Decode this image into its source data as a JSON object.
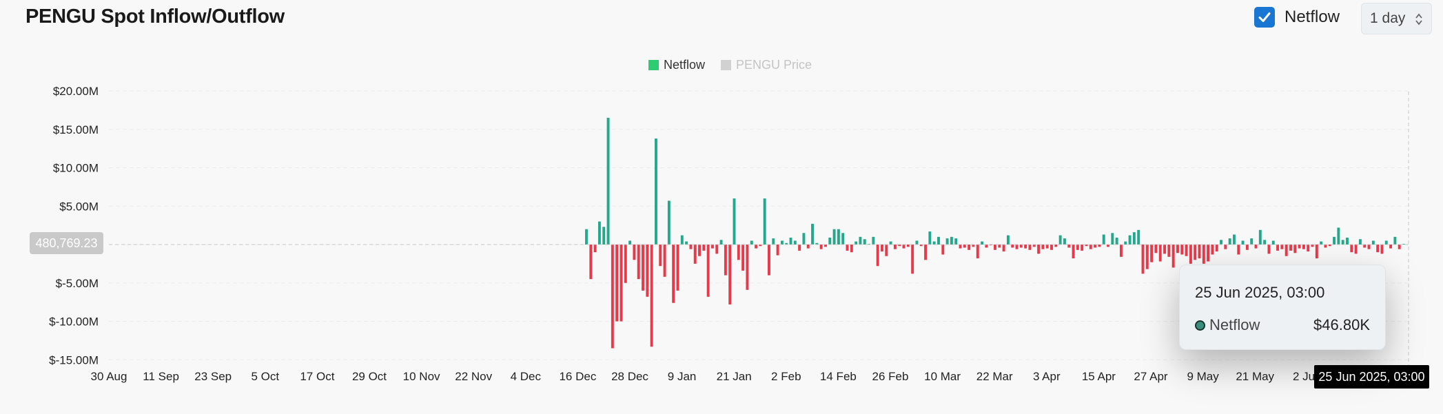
{
  "header": {
    "title": "PENGU Spot Inflow/Outflow",
    "netflow_toggle_label": "Netflow",
    "netflow_checked": true,
    "interval_value": "1 day"
  },
  "colors": {
    "positive": "#22a88a",
    "negative": "#e8394b",
    "price_legend": "#cccccc"
  },
  "chart_data": {
    "type": "bar",
    "legend": [
      {
        "name": "Netflow",
        "color": "#2ecc71",
        "active": true
      },
      {
        "name": "PENGU Price",
        "color": "#cccccc",
        "active": false
      }
    ],
    "y_axis": {
      "ticks": [
        20000000,
        15000000,
        10000000,
        5000000,
        0,
        -5000000,
        -10000000,
        -15000000
      ],
      "tick_labels": [
        "$20.00M",
        "$15.00M",
        "$10.00M",
        "$5.00M",
        "",
        "$-5.00M",
        "$-10.00M",
        "$-15.00M"
      ],
      "ylim": [
        -15000000,
        20000000
      ]
    },
    "x_axis": {
      "tick_labels": [
        "30 Aug",
        "11 Sep",
        "23 Sep",
        "5 Oct",
        "17 Oct",
        "29 Oct",
        "10 Nov",
        "22 Nov",
        "4 Dec",
        "16 Dec",
        "28 Dec",
        "9 Jan",
        "21 Jan",
        "2 Feb",
        "14 Feb",
        "26 Feb",
        "10 Mar",
        "22 Mar",
        "3 Apr",
        "15 Apr",
        "27 Apr",
        "9 May",
        "21 May",
        "2 Jun"
      ]
    },
    "series": [
      {
        "name": "Netflow",
        "values_millions": [
          2.0,
          -4.5,
          -1.0,
          3.0,
          2.3,
          16.5,
          -13.5,
          -10.0,
          -10.0,
          -5.0,
          0.5,
          -2.0,
          -4.5,
          -6.0,
          -6.8,
          -13.3,
          13.8,
          -2.8,
          -4.2,
          5.7,
          -7.6,
          -6.0,
          1.2,
          0.4,
          -0.6,
          -2.5,
          -1.5,
          -0.8,
          -6.8,
          -0.5,
          -1.2,
          0.6,
          -4.0,
          -7.8,
          6.0,
          -2.0,
          -3.4,
          -5.9,
          0.5,
          -0.5,
          -0.2,
          6.0,
          -4.0,
          0.8,
          -1.4,
          0.5,
          0.2,
          0.9,
          0.5,
          -0.8,
          1.5,
          -0.5,
          2.7,
          0.2,
          -0.6,
          -0.3,
          0.9,
          2.0,
          2.0,
          1.5,
          -0.8,
          -1.0,
          0.4,
          1.0,
          0.7,
          0.0,
          1.0,
          -2.8,
          -0.9,
          -1.5,
          0.4,
          -0.6,
          -0.2,
          -0.5,
          -0.3,
          -3.8,
          0.5,
          -0.2,
          -2.0,
          1.7,
          0.4,
          1.0,
          -1.3,
          0.8,
          1.0,
          0.8,
          -0.5,
          -0.4,
          -0.7,
          -0.3,
          -1.8,
          0.4,
          -0.4,
          -0.1,
          -0.7,
          -0.4,
          -0.9,
          1.2,
          -0.4,
          -0.6,
          -0.4,
          -0.5,
          -0.7,
          -0.3,
          -1.2,
          -0.6,
          -0.5,
          -0.7,
          -0.3,
          1.2,
          0.8,
          -0.4,
          -1.8,
          -0.7,
          -0.8,
          -0.2,
          -0.6,
          -0.4,
          -0.3,
          1.3,
          -0.3,
          1.5,
          0.9,
          -1.6,
          0.4,
          1.2,
          1.6,
          1.9,
          -3.8,
          -3.2,
          -2.3,
          -1.1,
          -2.2,
          -1.2,
          -1.6,
          -3.0,
          -1.1,
          -1.3,
          -1.5,
          -2.5,
          -2.0,
          -1.8,
          -2.5,
          -2.2,
          -1.3,
          -0.9,
          0.6,
          -0.6,
          0.8,
          1.3,
          -1.3,
          0.5,
          -0.7,
          0.8,
          -0.5,
          1.9,
          0.6,
          -1.2,
          0.5,
          -0.8,
          -0.6,
          -1.5,
          -0.8,
          -1.1,
          -0.5,
          -0.6,
          -0.9,
          -0.3,
          -1.8,
          0.4,
          -0.4,
          -0.2,
          1.0,
          2.2,
          0.6,
          0.9,
          -1.0,
          -1.2,
          0.7,
          -0.4,
          -0.6,
          0.5,
          -1.0,
          -1.2,
          0.5,
          -0.5,
          1.0,
          -0.6,
          0.047
        ]
      }
    ],
    "crosshair_price_label": "480,769.23",
    "crosshair_date_label": "25 Jun 2025, 03:00",
    "tooltip": {
      "date": "25 Jun 2025, 03:00",
      "series_name": "Netflow",
      "value": "$46.80K"
    }
  }
}
